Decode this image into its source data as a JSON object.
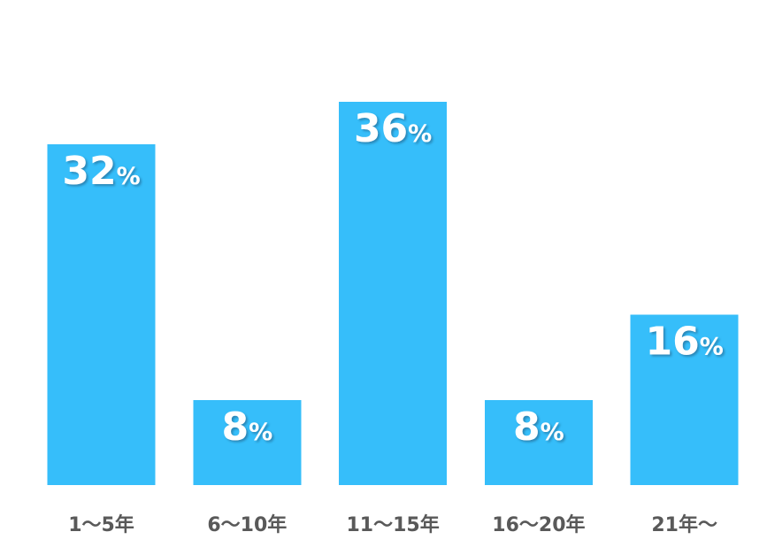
{
  "chart_data": {
    "type": "bar",
    "categories": [
      "1～5年",
      "6～10年",
      "11～15年",
      "16～20年",
      "21年～"
    ],
    "values": [
      32,
      8,
      36,
      8,
      16
    ],
    "value_suffix": "%",
    "title": "",
    "xlabel": "",
    "ylabel": "",
    "ylim": [
      0,
      40
    ],
    "grid": false,
    "legend": "none",
    "bar_color": "#36BEFA",
    "value_label_color": "#FFFFFF",
    "category_label_color": "#595959"
  }
}
